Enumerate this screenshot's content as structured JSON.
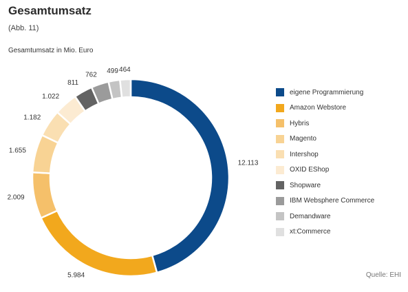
{
  "header": {
    "title": "Gesamtumsatz",
    "subtitle": "(Abb. 11)",
    "unit_label": "Gesamtumsatz in Mio. Euro"
  },
  "footer": {
    "source": "Quelle: EHI"
  },
  "chart_data": {
    "type": "pie",
    "title": "Gesamtumsatz",
    "subtitle": "(Abb. 11)",
    "ylabel": "Gesamtumsatz in Mio. Euro",
    "legend_position": "right",
    "categories": [
      "eigene Programmierung",
      "Amazon Webstore",
      "Hybris",
      "Magento",
      "Intershop",
      "OXID EShop",
      "Shopware",
      "IBM Websphere Commerce",
      "Demandware",
      "xt:Commerce"
    ],
    "values": [
      12113,
      5984,
      2009,
      1655,
      1182,
      1022,
      811,
      762,
      499,
      464
    ],
    "value_labels": [
      "12.113",
      "5.984",
      "2.009",
      "1.655",
      "1.182",
      "1.022",
      "811",
      "762",
      "499",
      "464"
    ],
    "colors": [
      "#0c4a8a",
      "#f2a81d",
      "#f5c06a",
      "#f8d394",
      "#fadfb2",
      "#fcebd2",
      "#636363",
      "#9b9b9b",
      "#c4c4c4",
      "#e0e0e0"
    ]
  }
}
